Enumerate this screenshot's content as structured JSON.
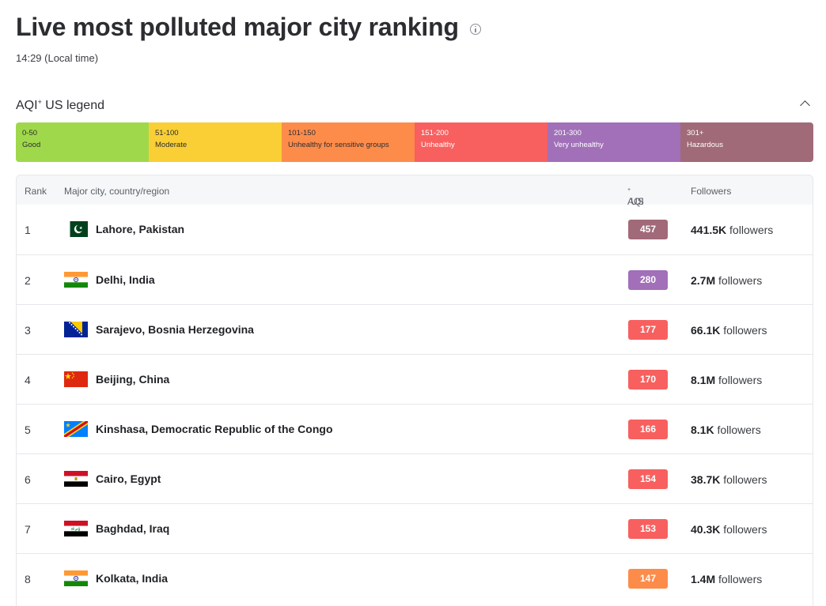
{
  "header": {
    "title": "Live most polluted major city ranking",
    "time": "14:29 (Local time)"
  },
  "legend": {
    "title": "AQI",
    "title_sup": "+",
    "title_suffix": " US legend",
    "items": [
      {
        "range": "0-50",
        "label": "Good",
        "color": "#a0d84c",
        "text_color": "#2b2d31"
      },
      {
        "range": "51-100",
        "label": "Moderate",
        "color": "#f9cf35",
        "text_color": "#2b2d31"
      },
      {
        "range": "101-150",
        "label": "Unhealthy for sensitive groups",
        "color": "#fd8c4b",
        "text_color": "#2b2d31"
      },
      {
        "range": "151-200",
        "label": "Unhealthy",
        "color": "#f7605f",
        "text_color": "#ffffff"
      },
      {
        "range": "201-300",
        "label": "Very unhealthy",
        "color": "#a170b8",
        "text_color": "#ffffff"
      },
      {
        "range": "301+",
        "label": "Hazardous",
        "color": "#a16a78",
        "text_color": "#ffffff"
      }
    ]
  },
  "table": {
    "columns": {
      "rank": "Rank",
      "city": "Major city, country/region",
      "aqi": "AQI",
      "aqi_sup": "+",
      "aqi_suffix": " US",
      "followers": "Followers"
    },
    "followers_suffix": " followers",
    "rows": [
      {
        "rank": "1",
        "city": "Lahore, Pakistan",
        "flag": "pakistan-flag-icon",
        "aqi": "457",
        "color": "#a16a78",
        "followers": "441.5K"
      },
      {
        "rank": "2",
        "city": "Delhi, India",
        "flag": "india-flag-icon",
        "aqi": "280",
        "color": "#a170b8",
        "followers": "2.7M"
      },
      {
        "rank": "3",
        "city": "Sarajevo, Bosnia Herzegovina",
        "flag": "bosnia-flag-icon",
        "aqi": "177",
        "color": "#f7605f",
        "followers": "66.1K"
      },
      {
        "rank": "4",
        "city": "Beijing, China",
        "flag": "china-flag-icon",
        "aqi": "170",
        "color": "#f7605f",
        "followers": "8.1M"
      },
      {
        "rank": "5",
        "city": "Kinshasa, Democratic Republic of the Congo",
        "flag": "drc-flag-icon",
        "aqi": "166",
        "color": "#f7605f",
        "followers": "8.1K"
      },
      {
        "rank": "6",
        "city": "Cairo, Egypt",
        "flag": "egypt-flag-icon",
        "aqi": "154",
        "color": "#f7605f",
        "followers": "38.7K"
      },
      {
        "rank": "7",
        "city": "Baghdad, Iraq",
        "flag": "iraq-flag-icon",
        "aqi": "153",
        "color": "#f7605f",
        "followers": "40.3K"
      },
      {
        "rank": "8",
        "city": "Kolkata, India",
        "flag": "india-flag-icon",
        "aqi": "147",
        "color": "#fd8c4b",
        "followers": "1.4M"
      }
    ]
  }
}
